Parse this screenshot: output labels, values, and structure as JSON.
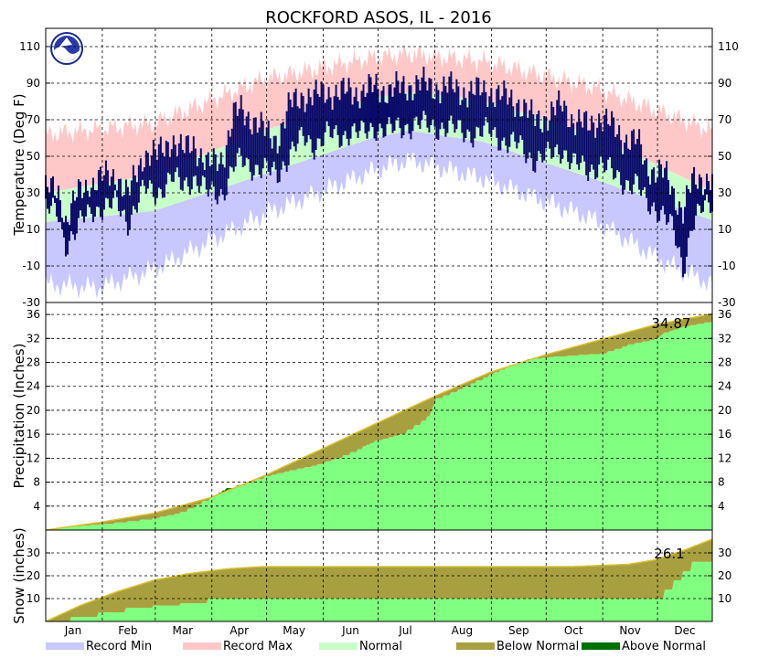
{
  "chart_data": {
    "type": "area",
    "title": "ROCKFORD      ASOS, IL - 2016",
    "months": [
      "Jan",
      "Feb",
      "Mar",
      "Apr",
      "May",
      "Jun",
      "Jul",
      "Aug",
      "Sep",
      "Oct",
      "Nov",
      "Dec"
    ],
    "legend": [
      {
        "name": "Record Min",
        "color": "#c8c8ff"
      },
      {
        "name": "Record Max",
        "color": "#ffc8c8"
      },
      {
        "name": "Normal",
        "color": "#c8ffc8"
      },
      {
        "name": "Below Normal",
        "color": "#a8a040"
      },
      {
        "name": "Above Normal",
        "color": "#007000"
      }
    ],
    "temperature": {
      "ylabel": "Temperature (Deg F)",
      "ylim": [
        -30,
        120
      ],
      "yticks": [
        -30,
        -10,
        10,
        30,
        50,
        70,
        90,
        110
      ],
      "record_max": {
        "day": [
          1,
          60,
          120,
          180,
          200,
          240,
          300,
          366
        ],
        "value": [
          62,
          68,
          92,
          104,
          106,
          102,
          88,
          64
        ]
      },
      "normal_high": {
        "day": [
          1,
          60,
          120,
          180,
          200,
          240,
          300,
          366
        ],
        "value": [
          30,
          40,
          64,
          82,
          85,
          81,
          62,
          31
        ]
      },
      "normal_low": {
        "day": [
          1,
          60,
          120,
          180,
          200,
          240,
          300,
          366
        ],
        "value": [
          14,
          20,
          40,
          60,
          64,
          58,
          38,
          15
        ]
      },
      "record_min": {
        "day": [
          1,
          30,
          60,
          120,
          180,
          200,
          240,
          300,
          340,
          366
        ],
        "value": [
          -20,
          -22,
          -12,
          18,
          42,
          48,
          38,
          16,
          -8,
          -20
        ]
      },
      "observed": {
        "day": [
          1,
          8,
          12,
          18,
          25,
          32,
          40,
          46,
          55,
          62,
          70,
          76,
          82,
          90,
          98,
          104,
          108,
          115,
          122,
          128,
          135,
          142,
          148,
          155,
          162,
          168,
          175,
          182,
          190,
          198,
          205,
          212,
          220,
          228,
          236,
          244,
          252,
          260,
          268,
          276,
          284,
          290,
          298,
          305,
          312,
          318,
          325,
          330,
          335,
          340,
          345,
          350,
          355,
          360,
          366
        ],
        "high": [
          32,
          30,
          15,
          28,
          35,
          38,
          40,
          28,
          52,
          50,
          60,
          52,
          58,
          44,
          50,
          72,
          75,
          70,
          62,
          60,
          78,
          84,
          82,
          86,
          84,
          86,
          85,
          88,
          86,
          88,
          90,
          88,
          88,
          86,
          85,
          86,
          82,
          80,
          70,
          72,
          78,
          70,
          66,
          72,
          65,
          60,
          58,
          45,
          42,
          40,
          30,
          20,
          35,
          38,
          38
        ],
        "low": [
          22,
          18,
          2,
          10,
          20,
          22,
          24,
          14,
          32,
          30,
          38,
          34,
          38,
          30,
          30,
          44,
          48,
          44,
          42,
          40,
          52,
          60,
          56,
          62,
          60,
          64,
          62,
          66,
          64,
          66,
          68,
          66,
          66,
          64,
          62,
          64,
          58,
          56,
          48,
          50,
          54,
          46,
          42,
          46,
          40,
          36,
          34,
          24,
          22,
          18,
          8,
          -12,
          14,
          20,
          24
        ]
      }
    },
    "precipitation": {
      "ylabel": "Precipitation (Inches)",
      "ylim": [
        0,
        38
      ],
      "yticks": [
        4,
        8,
        12,
        16,
        20,
        24,
        28,
        32,
        36
      ],
      "total_label": "34.87",
      "normal_cumulative": {
        "day": [
          1,
          31,
          60,
          91,
          121,
          152,
          182,
          213,
          244,
          274,
          305,
          335,
          366
        ],
        "value": [
          0,
          1.3,
          2.8,
          5.4,
          9.1,
          13.5,
          17.8,
          22.2,
          26.3,
          29.2,
          31.8,
          34.3,
          36.1
        ]
      },
      "observed_cumulative": {
        "day": [
          1,
          10,
          31,
          60,
          75,
          91,
          100,
          121,
          135,
          150,
          160,
          175,
          182,
          195,
          210,
          215,
          230,
          244,
          255,
          265,
          280,
          305,
          320,
          335,
          340,
          350,
          366
        ],
        "value": [
          0,
          0.5,
          1.0,
          2.0,
          3.0,
          5.5,
          7.0,
          9.0,
          10.0,
          11.0,
          12.0,
          14.0,
          15.0,
          16.0,
          19.0,
          22.0,
          24.0,
          26.0,
          27.5,
          28.5,
          29.0,
          29.5,
          31.0,
          32.0,
          33.0,
          34.0,
          34.87
        ]
      }
    },
    "snow": {
      "ylabel": "Snow (inches)",
      "ylim": [
        0,
        40
      ],
      "yticks": [
        10,
        20,
        30
      ],
      "total_label": "26.1",
      "normal_cumulative": {
        "day": [
          1,
          20,
          40,
          60,
          80,
          100,
          120,
          290,
          305,
          320,
          335,
          350,
          366
        ],
        "value": [
          0,
          7,
          13,
          18,
          21,
          23,
          24,
          24,
          24.5,
          25,
          27,
          31,
          36
        ]
      },
      "observed_cumulative": {
        "day": [
          1,
          15,
          30,
          45,
          60,
          75,
          90,
          100,
          335,
          340,
          345,
          350,
          355,
          366
        ],
        "value": [
          0,
          2,
          4,
          6,
          7,
          8,
          10,
          10,
          10,
          14,
          18,
          22,
          26.1,
          26.1
        ]
      }
    }
  }
}
